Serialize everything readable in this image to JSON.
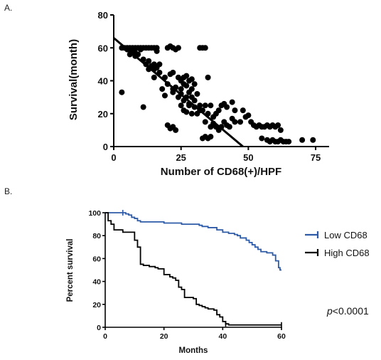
{
  "panels": [
    {
      "label": "A."
    },
    {
      "label": "B."
    }
  ],
  "chart_data": [
    {
      "type": "scatter",
      "panel": "A.",
      "xlabel": "Number of CD68(+)/HPF",
      "ylabel": "Survival(month)",
      "xlim": [
        0,
        80
      ],
      "ylim": [
        0,
        80
      ],
      "xticks": [
        0,
        25,
        50,
        75
      ],
      "yticks": [
        0,
        20,
        40,
        60,
        80
      ],
      "grid": false,
      "point_color": "#000000",
      "points": [
        [
          3,
          60
        ],
        [
          4,
          60
        ],
        [
          5,
          60
        ],
        [
          5,
          59
        ],
        [
          6,
          60
        ],
        [
          7,
          60
        ],
        [
          7,
          58
        ],
        [
          8,
          60
        ],
        [
          8,
          57
        ],
        [
          9,
          60
        ],
        [
          10,
          60
        ],
        [
          10,
          59
        ],
        [
          11,
          60
        ],
        [
          12,
          60
        ],
        [
          13,
          60
        ],
        [
          14,
          60
        ],
        [
          15,
          60
        ],
        [
          16,
          60
        ],
        [
          16,
          58
        ],
        [
          20,
          60
        ],
        [
          21,
          61
        ],
        [
          22,
          60
        ],
        [
          23,
          59
        ],
        [
          24,
          60
        ],
        [
          32,
          60
        ],
        [
          33,
          60
        ],
        [
          34,
          60
        ],
        [
          6,
          56
        ],
        [
          8,
          55
        ],
        [
          9,
          56
        ],
        [
          11,
          53
        ],
        [
          12,
          50
        ],
        [
          13,
          52
        ],
        [
          14,
          49
        ],
        [
          15,
          50
        ],
        [
          15,
          47
        ],
        [
          16,
          48
        ],
        [
          17,
          45
        ],
        [
          17,
          50
        ],
        [
          13,
          47
        ],
        [
          15,
          42
        ],
        [
          19,
          42
        ],
        [
          20,
          38
        ],
        [
          21,
          44
        ],
        [
          22,
          45
        ],
        [
          23,
          36
        ],
        [
          24,
          42
        ],
        [
          25,
          40
        ],
        [
          26,
          38
        ],
        [
          26,
          42
        ],
        [
          27,
          37
        ],
        [
          27,
          43
        ],
        [
          28,
          40
        ],
        [
          29,
          35
        ],
        [
          29,
          41
        ],
        [
          30,
          38
        ],
        [
          31,
          32
        ],
        [
          35,
          42
        ],
        [
          18,
          35
        ],
        [
          19,
          31
        ],
        [
          22,
          33
        ],
        [
          24,
          30
        ],
        [
          25,
          32
        ],
        [
          26,
          28
        ],
        [
          27,
          30
        ],
        [
          28,
          33
        ],
        [
          29,
          30
        ],
        [
          30,
          28
        ],
        [
          25,
          35
        ],
        [
          28,
          26
        ],
        [
          30,
          24
        ],
        [
          32,
          22
        ],
        [
          3,
          33
        ],
        [
          11,
          24
        ],
        [
          22,
          35
        ],
        [
          25,
          25
        ],
        [
          26,
          22
        ],
        [
          27,
          21
        ],
        [
          28,
          25
        ],
        [
          29,
          20
        ],
        [
          31,
          20
        ],
        [
          32,
          25
        ],
        [
          33,
          22
        ],
        [
          34,
          25
        ],
        [
          35,
          20
        ],
        [
          36,
          25
        ],
        [
          37,
          18
        ],
        [
          38,
          20
        ],
        [
          39,
          22
        ],
        [
          40,
          25
        ],
        [
          41,
          26
        ],
        [
          42,
          24
        ],
        [
          44,
          27
        ],
        [
          45,
          22
        ],
        [
          47,
          15
        ],
        [
          34,
          15
        ],
        [
          36,
          12
        ],
        [
          37,
          14
        ],
        [
          38,
          12
        ],
        [
          39,
          10
        ],
        [
          40,
          12
        ],
        [
          41,
          15
        ],
        [
          42,
          13
        ],
        [
          43,
          12
        ],
        [
          44,
          17
        ],
        [
          45,
          15
        ],
        [
          48,
          22
        ],
        [
          49,
          18
        ],
        [
          50,
          19
        ],
        [
          51,
          15
        ],
        [
          52,
          13
        ],
        [
          53,
          12
        ],
        [
          54,
          13
        ],
        [
          55,
          12
        ],
        [
          56,
          12
        ],
        [
          57,
          13
        ],
        [
          58,
          12
        ],
        [
          59,
          13
        ],
        [
          60,
          12
        ],
        [
          61,
          13
        ],
        [
          62,
          10
        ],
        [
          20,
          13
        ],
        [
          21,
          11
        ],
        [
          22,
          12
        ],
        [
          23,
          10
        ],
        [
          33,
          5
        ],
        [
          34,
          6
        ],
        [
          35,
          5
        ],
        [
          36,
          6
        ],
        [
          55,
          5
        ],
        [
          57,
          4
        ],
        [
          58,
          3
        ],
        [
          59,
          4
        ],
        [
          60,
          3
        ],
        [
          61,
          3
        ],
        [
          62,
          4
        ],
        [
          63,
          3
        ],
        [
          64,
          3
        ],
        [
          65,
          3
        ],
        [
          70,
          4
        ],
        [
          74,
          4
        ]
      ],
      "trendline": {
        "x": [
          0,
          48
        ],
        "y": [
          66,
          0
        ]
      }
    },
    {
      "type": "line",
      "panel": "B.",
      "step": true,
      "xlabel": "Months",
      "ylabel": "Percent survival",
      "xlim": [
        0,
        60
      ],
      "ylim": [
        0,
        100
      ],
      "xticks": [
        0,
        20,
        40,
        60
      ],
      "yticks": [
        0,
        20,
        40,
        60,
        80,
        100
      ],
      "grid": false,
      "legend_position": "right",
      "series": [
        {
          "name": "Low CD68",
          "color": "#2e5ba8",
          "censor_x": [
            6
          ],
          "points": [
            [
              0,
              100
            ],
            [
              6,
              100
            ],
            [
              7,
              99
            ],
            [
              8,
              98
            ],
            [
              9,
              96
            ],
            [
              10,
              95
            ],
            [
              11,
              93
            ],
            [
              12,
              92
            ],
            [
              18,
              92
            ],
            [
              20,
              91
            ],
            [
              22,
              91
            ],
            [
              26,
              90
            ],
            [
              30,
              90
            ],
            [
              32,
              89
            ],
            [
              33,
              88
            ],
            [
              35,
              87
            ],
            [
              38,
              85
            ],
            [
              40,
              83
            ],
            [
              42,
              82
            ],
            [
              44,
              81
            ],
            [
              45,
              80
            ],
            [
              46,
              78
            ],
            [
              48,
              76
            ],
            [
              49,
              74
            ],
            [
              50,
              72
            ],
            [
              51,
              70
            ],
            [
              52,
              68
            ],
            [
              53,
              66
            ],
            [
              55,
              65
            ],
            [
              57,
              63
            ],
            [
              58,
              58
            ],
            [
              59,
              52
            ],
            [
              59.5,
              50
            ],
            [
              60,
              50
            ]
          ]
        },
        {
          "name": "High CD68",
          "color": "#000000",
          "censor_x": [
            41,
            60
          ],
          "points": [
            [
              0,
              100
            ],
            [
              1,
              93
            ],
            [
              2,
              90
            ],
            [
              3,
              85
            ],
            [
              6,
              83
            ],
            [
              9,
              83
            ],
            [
              10,
              76
            ],
            [
              11,
              70
            ],
            [
              12,
              55
            ],
            [
              13,
              54
            ],
            [
              15,
              53
            ],
            [
              17,
              52
            ],
            [
              18,
              51
            ],
            [
              20,
              46
            ],
            [
              22,
              44
            ],
            [
              23,
              43
            ],
            [
              24,
              41
            ],
            [
              25,
              35
            ],
            [
              26,
              33
            ],
            [
              27,
              26
            ],
            [
              30,
              25
            ],
            [
              31,
              20
            ],
            [
              32,
              19
            ],
            [
              33,
              18
            ],
            [
              34,
              17
            ],
            [
              35,
              16
            ],
            [
              37,
              15
            ],
            [
              38,
              11
            ],
            [
              39,
              9
            ],
            [
              40,
              5
            ],
            [
              41,
              3
            ],
            [
              42,
              2
            ],
            [
              60,
              2
            ]
          ]
        }
      ],
      "annotation": {
        "prefix": "p",
        "text": "<0.0001"
      }
    }
  ]
}
